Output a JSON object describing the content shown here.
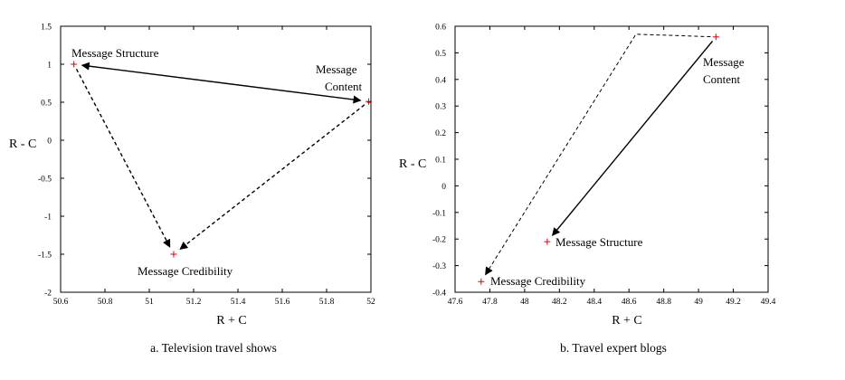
{
  "colors": {
    "point": "#e00000",
    "axis": "#000000",
    "arrow": "#000000"
  },
  "chart_data": [
    {
      "type": "scatter",
      "caption": "a. Television travel shows",
      "xlabel": "R + C",
      "ylabel": "R - C",
      "xlim": [
        50.6,
        52
      ],
      "ylim": [
        -2,
        1.5
      ],
      "xticks": [
        50.6,
        50.8,
        51,
        51.2,
        51.4,
        51.6,
        51.8,
        52
      ],
      "yticks": [
        -2,
        -1.5,
        -1,
        -0.5,
        0,
        0.5,
        1,
        1.5
      ],
      "xtick_labels": [
        "50.6",
        "50.8",
        "51",
        "51.2",
        "51.4",
        "51.6",
        "51.8",
        "52"
      ],
      "ytick_labels": [
        "-2",
        "-1.5",
        "-1",
        "-0.5",
        "0",
        "0.5",
        "1",
        "1.5"
      ],
      "grid": false,
      "points": [
        {
          "label": "Message Structure",
          "x": 50.66,
          "y": 1.0
        },
        {
          "label": "Message Content",
          "x": 51.99,
          "y": 0.51
        },
        {
          "label": "Message Credibility",
          "x": 51.11,
          "y": -1.5
        }
      ],
      "arrows": [
        {
          "from": "Message Structure",
          "to": "Message Content",
          "style": "solid",
          "double_headed": true
        },
        {
          "from": "Message Structure",
          "to": "Message Credibility",
          "style": "dashed",
          "double_headed": false
        },
        {
          "from": "Message Content",
          "to": "Message Credibility",
          "style": "dashed",
          "double_headed": false
        }
      ]
    },
    {
      "type": "scatter",
      "caption": "b. Travel expert blogs",
      "xlabel": "R + C",
      "ylabel": "R - C",
      "xlim": [
        47.6,
        49.4
      ],
      "ylim": [
        -0.4,
        0.6
      ],
      "xticks": [
        47.6,
        47.8,
        48,
        48.2,
        48.4,
        48.6,
        48.8,
        49,
        49.2,
        49.4
      ],
      "yticks": [
        -0.4,
        -0.3,
        -0.2,
        -0.1,
        0,
        0.1,
        0.2,
        0.3,
        0.4,
        0.5,
        0.6
      ],
      "xtick_labels": [
        "47.6",
        "47.8",
        "48",
        "48.2",
        "48.4",
        "48.6",
        "48.8",
        "49",
        "49.2",
        "49.4"
      ],
      "ytick_labels": [
        "-0.4",
        "-0.3",
        "-0.2",
        "-0.1",
        "0",
        "0.1",
        "0.2",
        "0.3",
        "0.4",
        "0.5",
        "0.6"
      ],
      "grid": false,
      "points": [
        {
          "label": "Message Content",
          "x": 49.1,
          "y": 0.56
        },
        {
          "label": "Message Structure",
          "x": 48.13,
          "y": -0.21
        },
        {
          "label": "Message Credibility",
          "x": 47.75,
          "y": -0.36
        }
      ],
      "arrows": [
        {
          "from": "Message Content",
          "to": "Message Structure",
          "style": "solid",
          "double_headed": false
        },
        {
          "from": "Message Content",
          "to": "Message Credibility",
          "style": "dashed",
          "double_headed": false,
          "via_corner": [
            48.64,
            0.57
          ]
        }
      ]
    }
  ]
}
